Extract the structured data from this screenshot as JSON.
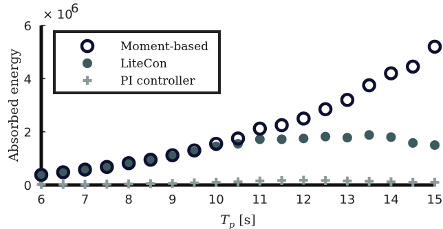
{
  "chart_data": {
    "type": "scatter",
    "xlabel": "T",
    "xlabel_sub": "p",
    "xlabel_unit": "[s]",
    "ylabel": "Absorbed energy",
    "y_multiplier": "× 10",
    "y_multiplier_exp": "6",
    "xlim": [
      6,
      15
    ],
    "ylim": [
      0,
      6
    ],
    "x_ticks": [
      "6",
      "7",
      "8",
      "9",
      "10",
      "11",
      "12",
      "13",
      "14",
      "15"
    ],
    "y_ticks": [
      "0",
      "2",
      "4",
      "6"
    ],
    "grid": false,
    "legend_position": "top-left",
    "x": [
      6,
      6.5,
      7,
      7.5,
      8,
      8.5,
      9,
      9.5,
      10,
      10.5,
      11,
      11.5,
      12,
      12.5,
      13,
      13.5,
      14,
      14.5,
      15
    ],
    "series": [
      {
        "name": "Moment-based",
        "marker": "open-circle",
        "color": "#0d1033",
        "values": [
          0.38,
          0.48,
          0.58,
          0.68,
          0.82,
          0.95,
          1.12,
          1.3,
          1.55,
          1.75,
          2.12,
          2.25,
          2.5,
          2.85,
          3.2,
          3.75,
          4.2,
          4.45,
          5.2
        ]
      },
      {
        "name": "LiteCon",
        "marker": "filled-circle",
        "color": "#3d5a5c",
        "values": [
          0.38,
          0.48,
          0.55,
          0.65,
          0.8,
          0.92,
          1.08,
          1.25,
          1.45,
          1.55,
          1.72,
          1.72,
          1.75,
          1.82,
          1.78,
          1.88,
          1.8,
          1.58,
          1.5
        ]
      },
      {
        "name": "PI controller",
        "marker": "plus",
        "color": "#8a9a9b",
        "values": [
          0.02,
          0.02,
          0.02,
          0.03,
          0.04,
          0.05,
          0.06,
          0.08,
          0.1,
          0.12,
          0.15,
          0.17,
          0.18,
          0.17,
          0.15,
          0.14,
          0.12,
          0.1,
          0.1
        ]
      }
    ]
  }
}
